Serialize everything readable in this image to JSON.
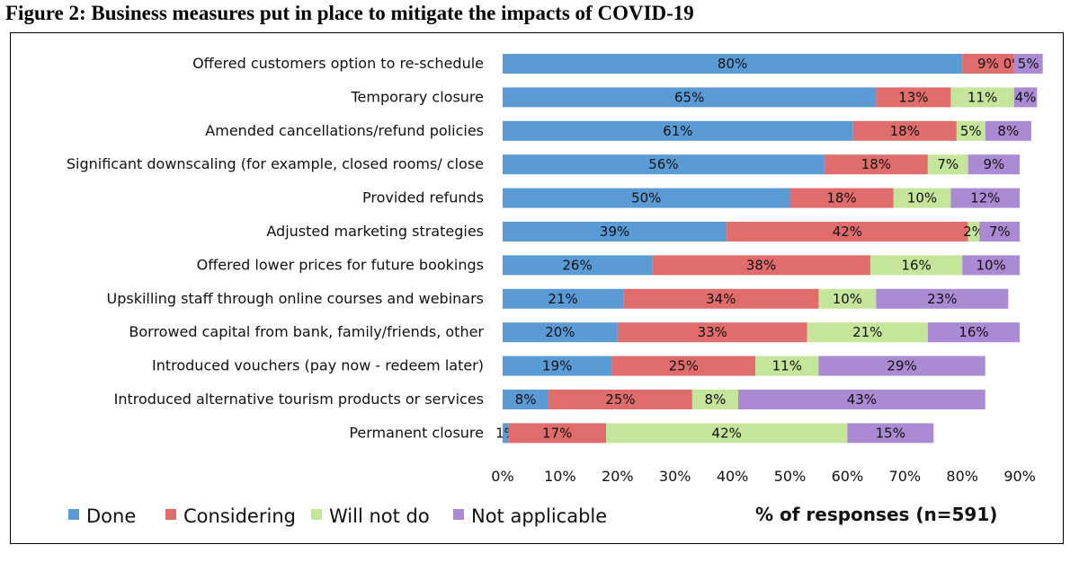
{
  "figure_title": "Figure 2: Business measures put in place to mitigate the impacts of COVID-19",
  "chart_data": {
    "type": "bar",
    "orientation": "horizontal",
    "stacked": true,
    "xlabel": "% of responses (n=591)",
    "ylabel": "",
    "xlim": [
      0,
      90
    ],
    "x_ticks": [
      "0%",
      "10%",
      "20%",
      "30%",
      "40%",
      "50%",
      "60%",
      "70%",
      "80%",
      "90%"
    ],
    "grid": false,
    "legend_position": "bottom",
    "categories": [
      "Offered customers option to re-schedule",
      "Temporary closure",
      "Amended cancellations/refund policies",
      "Significant downscaling (for example, closed rooms/ close",
      "Provided refunds",
      "Adjusted marketing strategies",
      "Offered lower prices for future bookings",
      "Upskilling staff through online courses and webinars",
      "Borrowed capital from bank, family/friends, other",
      "Introduced vouchers (pay now - redeem later)",
      "Introduced alternative tourism products or services",
      "Permanent closure"
    ],
    "series": [
      {
        "name": "Done",
        "color": "#5b9bd5",
        "values": [
          80,
          65,
          61,
          56,
          50,
          39,
          26,
          21,
          20,
          19,
          8,
          1
        ],
        "labels": [
          "80%",
          "65%",
          "61%",
          "56%",
          "50%",
          "39%",
          "26%",
          "21%",
          "20%",
          "19%",
          "8%",
          "1%"
        ]
      },
      {
        "name": "Considering",
        "color": "#e06c6c",
        "values": [
          9,
          13,
          18,
          18,
          18,
          42,
          38,
          34,
          33,
          25,
          25,
          17
        ],
        "labels": [
          "9%",
          "13%",
          "18%",
          "18%",
          "18%",
          "42%",
          "38%",
          "34%",
          "33%",
          "25%",
          "25%",
          "17%"
        ]
      },
      {
        "name": "Will not do",
        "color": "#c5e59a",
        "values": [
          0,
          11,
          5,
          7,
          10,
          2,
          16,
          10,
          21,
          11,
          8,
          42
        ],
        "labels": [
          "0%",
          "11%",
          "5%",
          "7%",
          "10%",
          "2%",
          "16%",
          "10%",
          "21%",
          "11%",
          "8%",
          "42%"
        ]
      },
      {
        "name": "Not applicable",
        "color": "#a98ad3",
        "values": [
          5,
          4,
          8,
          9,
          12,
          7,
          10,
          23,
          16,
          29,
          43,
          15
        ],
        "labels": [
          "5%",
          "4%",
          "8%",
          "9%",
          "12%",
          "7%",
          "10%",
          "23%",
          "16%",
          "29%",
          "43%",
          "15%"
        ]
      }
    ]
  }
}
